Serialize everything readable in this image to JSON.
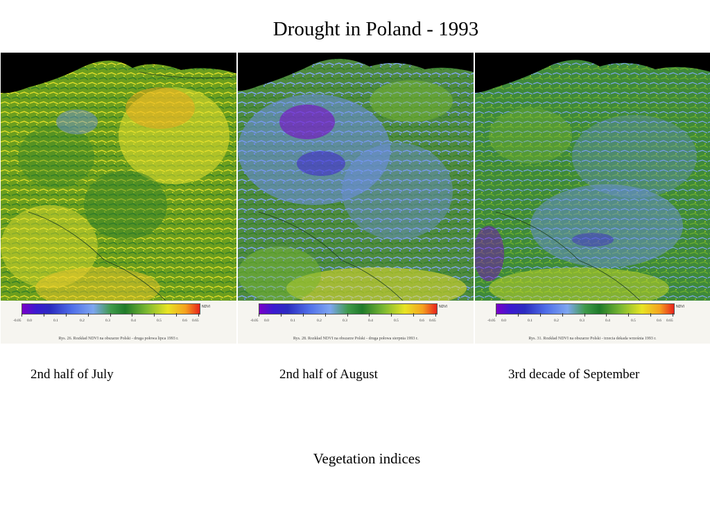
{
  "title": "Drought in Poland - 1993",
  "footer": "Vegetation indices",
  "legend": {
    "unit": "NDVI",
    "ticks": [
      "-0.05",
      "0.0",
      "0.1",
      "0.2",
      "0.3",
      "0.4",
      "0.5",
      "0.6",
      "0.65"
    ]
  },
  "colors": {
    "high_ndvi": "#e8231c",
    "mid_ndvi": "#e8e424",
    "vegetation": "#2f7d2a",
    "low_ndvi": "#6e8ee8",
    "very_low_ndvi": "#7a00c8",
    "sea": "#000000"
  },
  "panels": [
    {
      "label": "2nd half of July",
      "caption": "Rys. 26. Rozkład NDVI na obszarze Polski - druga połowa lipca 1993 r."
    },
    {
      "label": "2nd half of August",
      "caption": "Rys. 28. Rozkład NDVI na obszarze Polski - druga połowa sierpnia 1993 r."
    },
    {
      "label": "3rd decade of September",
      "caption": "Rys. 31. Rozkład NDVI na obszarze Polski - trzecia dekada września 1993 r."
    }
  ]
}
